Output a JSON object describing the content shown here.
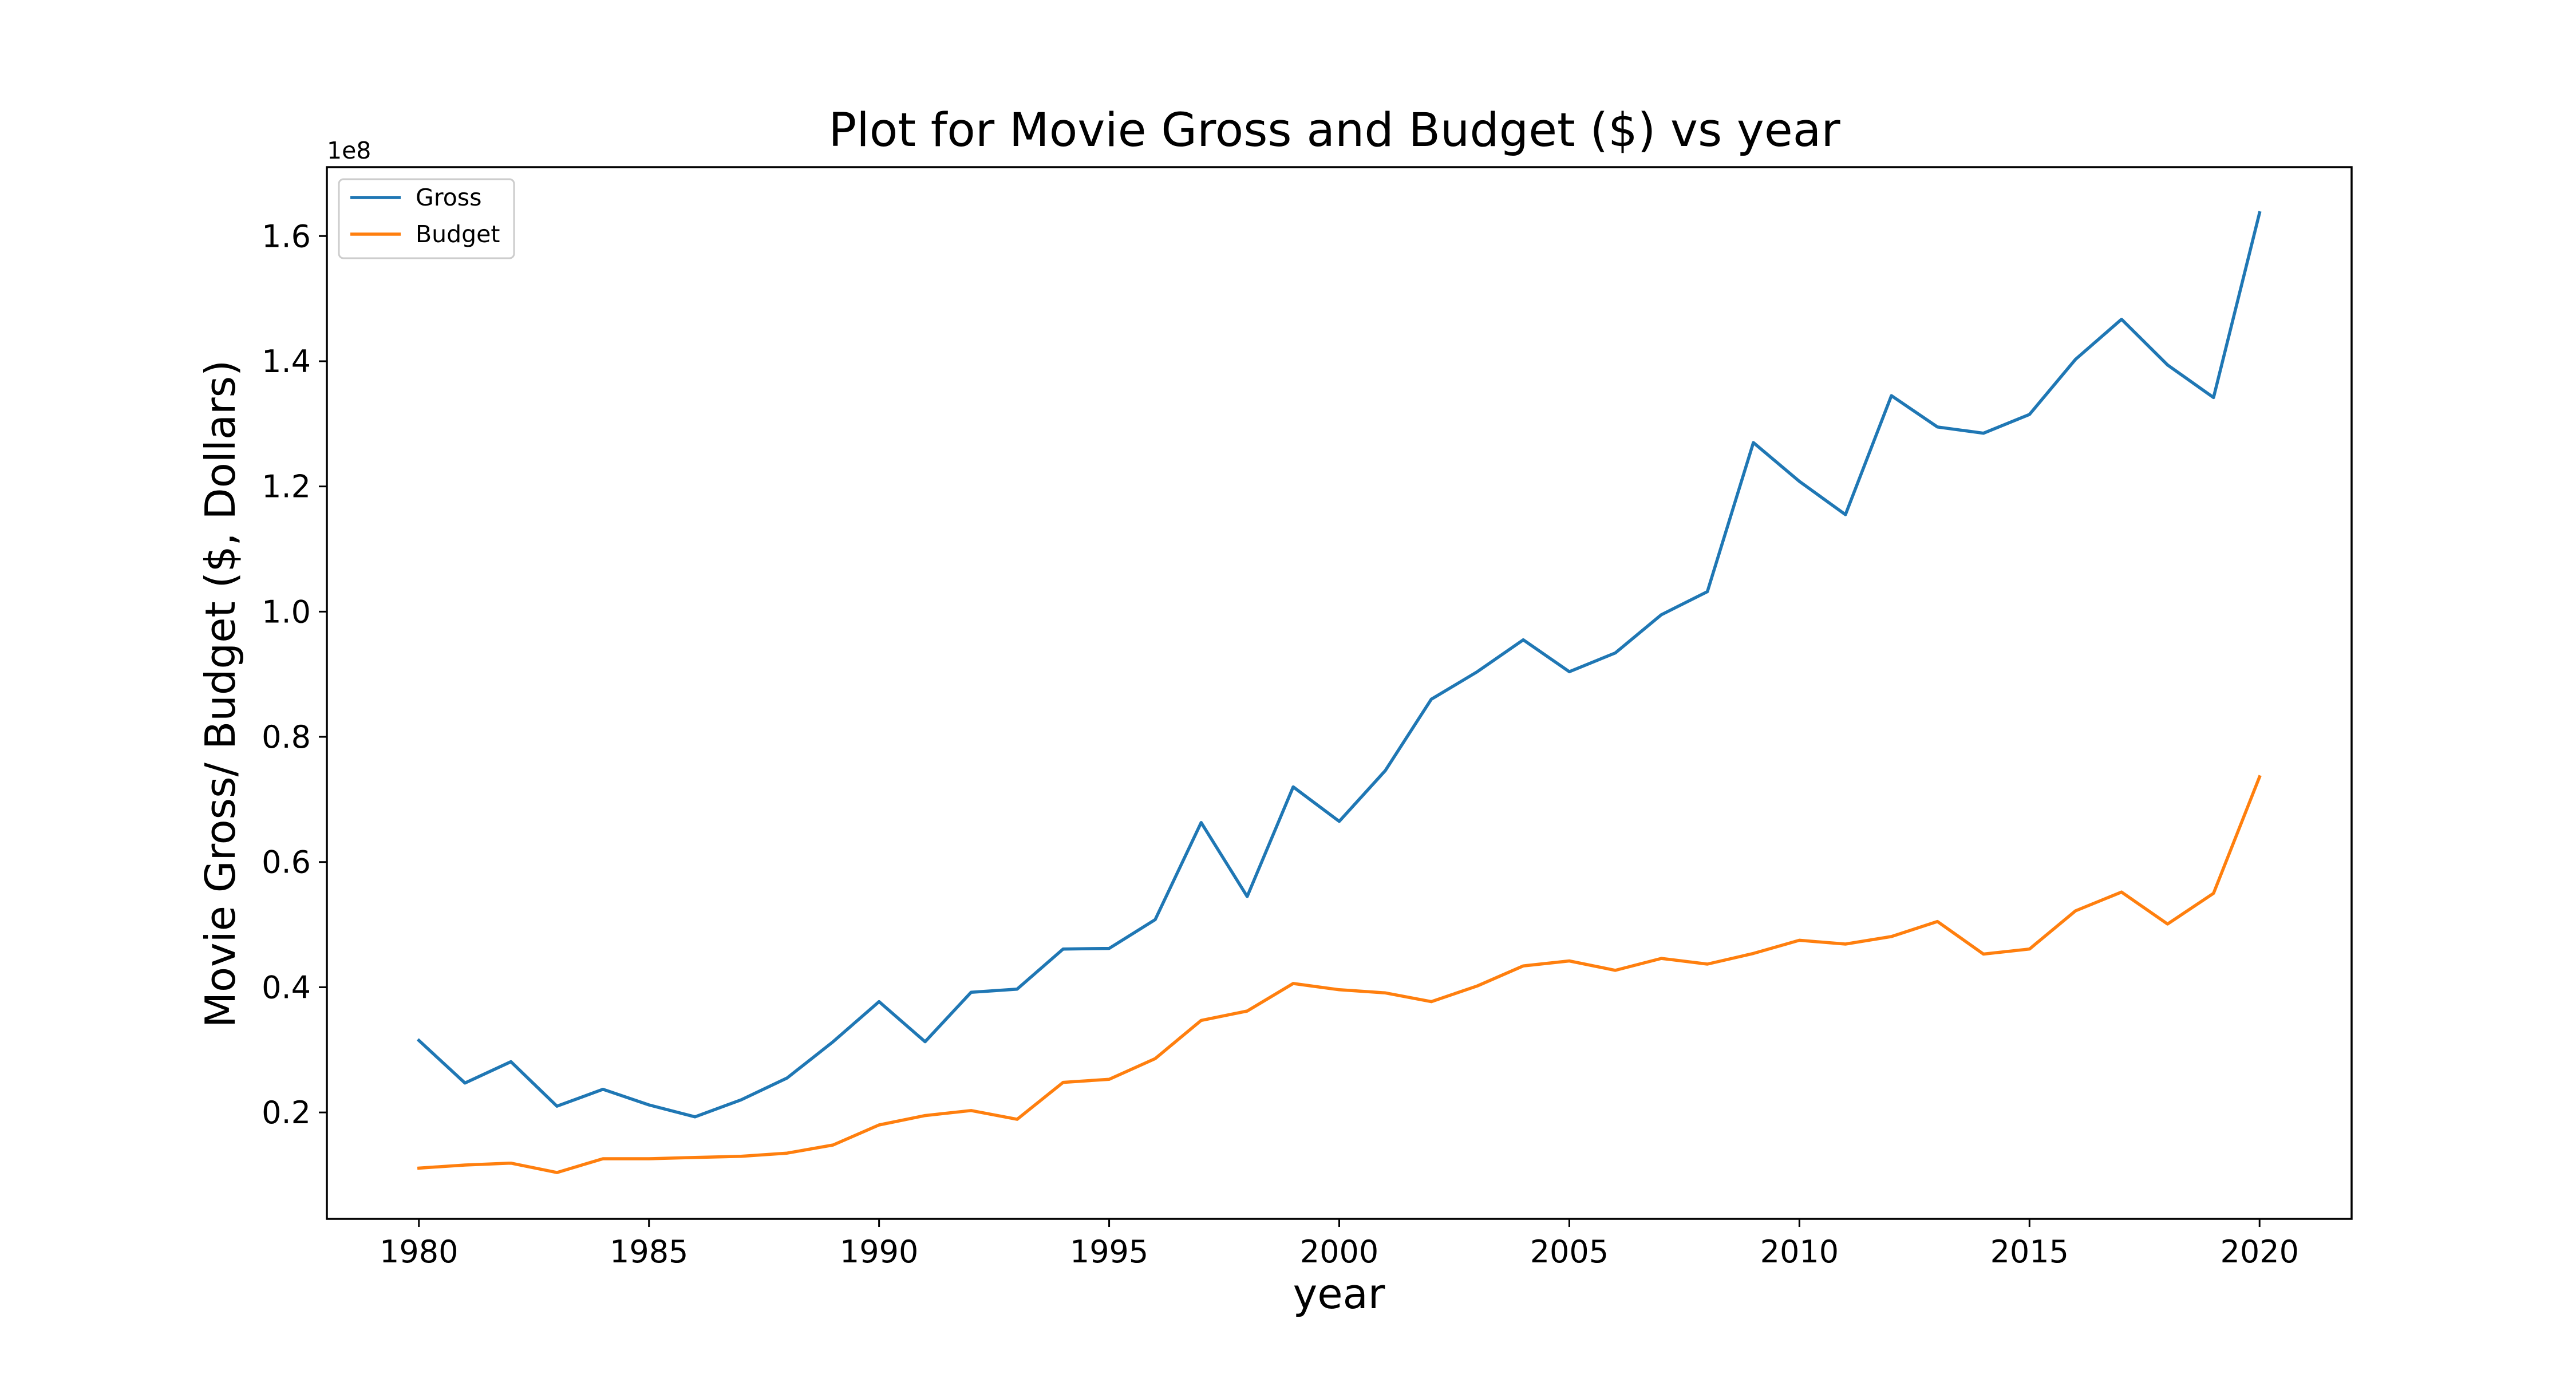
{
  "chart_data": {
    "type": "line",
    "title": "Plot for Movie Gross and Budget ($) vs year",
    "xlabel": "year",
    "ylabel": "Movie Gross/ Budget ($, Dollars)",
    "y_offset_label": "1e8",
    "xlim": [
      1978,
      2022
    ],
    "ylim": [
      0.03,
      1.71
    ],
    "xticks": [
      1980,
      1985,
      1990,
      1995,
      2000,
      2005,
      2010,
      2015,
      2020
    ],
    "yticks": [
      0.2,
      0.4,
      0.6,
      0.8,
      1.0,
      1.2,
      1.4,
      1.6
    ],
    "ytick_labels": [
      "0.2",
      "0.4",
      "0.6",
      "0.8",
      "1.0",
      "1.2",
      "1.4",
      "1.6"
    ],
    "legend_position": "top-left",
    "grid": false,
    "x": [
      1980,
      1981,
      1982,
      1983,
      1984,
      1985,
      1986,
      1987,
      1988,
      1989,
      1990,
      1991,
      1992,
      1993,
      1994,
      1995,
      1996,
      1997,
      1998,
      1999,
      2000,
      2001,
      2002,
      2003,
      2004,
      2005,
      2006,
      2007,
      2008,
      2009,
      2010,
      2011,
      2012,
      2013,
      2014,
      2015,
      2016,
      2017,
      2018,
      2019,
      2020
    ],
    "series": [
      {
        "name": "Gross",
        "color": "#1f77b4",
        "values": [
          0.315,
          0.247,
          0.281,
          0.21,
          0.237,
          0.212,
          0.193,
          0.22,
          0.255,
          0.313,
          0.377,
          0.313,
          0.392,
          0.397,
          0.461,
          0.462,
          0.508,
          0.663,
          0.545,
          0.72,
          0.665,
          0.746,
          0.86,
          0.904,
          0.955,
          0.904,
          0.934,
          0.995,
          1.032,
          1.27,
          1.208,
          1.155,
          1.345,
          1.295,
          1.285,
          1.315,
          1.403,
          1.467,
          1.394,
          1.342,
          1.637
        ]
      },
      {
        "name": "Budget",
        "color": "#ff7f0e",
        "values": [
          0.111,
          0.116,
          0.119,
          0.104,
          0.126,
          0.126,
          0.128,
          0.13,
          0.135,
          0.148,
          0.18,
          0.195,
          0.203,
          0.189,
          0.248,
          0.253,
          0.286,
          0.347,
          0.362,
          0.406,
          0.396,
          0.391,
          0.377,
          0.402,
          0.434,
          0.442,
          0.427,
          0.446,
          0.437,
          0.454,
          0.475,
          0.469,
          0.481,
          0.505,
          0.453,
          0.461,
          0.522,
          0.552,
          0.501,
          0.55,
          0.736
        ]
      }
    ]
  }
}
